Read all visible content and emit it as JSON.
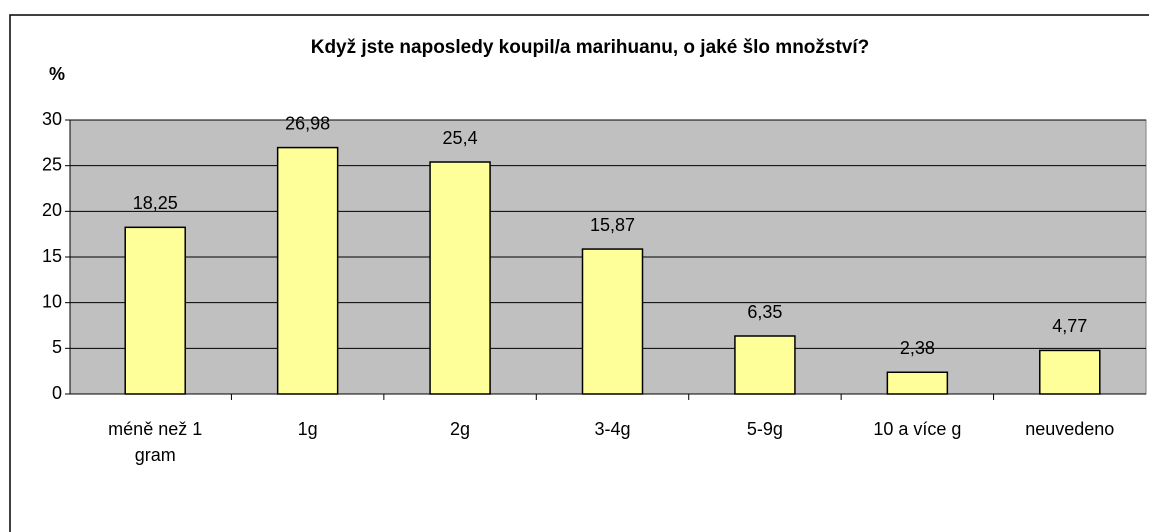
{
  "chart_data": {
    "type": "bar",
    "title": "Když jste naposledy koupil/a marihuanu, o jaké šlo množství?",
    "y_label": "%",
    "categories": [
      "méně než 1 gram",
      "1g",
      "2g",
      "3-4g",
      "5-9g",
      "10 a více g",
      "neuvedeno"
    ],
    "values": [
      18.25,
      26.98,
      25.4,
      15.87,
      6.35,
      2.38,
      4.77
    ],
    "value_labels": [
      "18,25",
      "26,98",
      "25,4",
      "15,87",
      "6,35",
      "2,38",
      "4,77"
    ],
    "color": "#ffff99",
    "ylim": [
      0,
      30
    ],
    "yticks": [
      0,
      5,
      10,
      15,
      20,
      25,
      30
    ],
    "grid": true
  }
}
